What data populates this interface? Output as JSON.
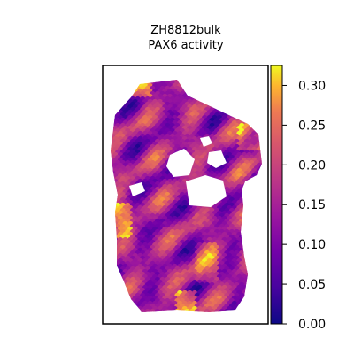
{
  "chart_data": {
    "type": "heatmap",
    "title_line1": "ZH8812bulk",
    "title_line2": "PAX6 activity",
    "xlabel": "",
    "ylabel": "",
    "colormap": "plasma",
    "colorbar": {
      "range": [
        0.0,
        0.325
      ],
      "ticks": [
        0.0,
        0.05,
        0.1,
        0.15,
        0.2,
        0.25,
        0.3
      ],
      "tick_labels": [
        "0.00",
        "0.05",
        "0.10",
        "0.15",
        "0.20",
        "0.25",
        "0.30"
      ]
    },
    "colors": {
      "low": "#0d0887",
      "mid": "#cc4778",
      "high": "#f0f921"
    }
  }
}
